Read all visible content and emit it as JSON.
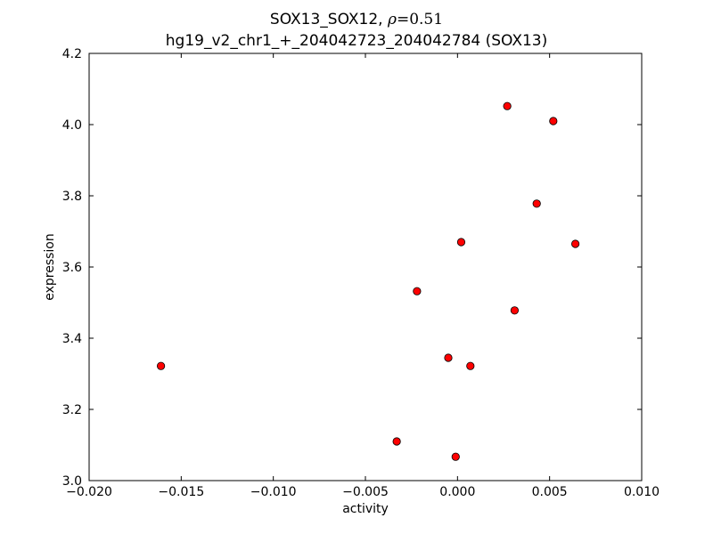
{
  "chart_data": {
    "type": "scatter",
    "title_line1_prefix": "SOX13_SOX12, ",
    "title_rho_symbol": "ρ",
    "title_rho_value": "=0.51",
    "title_line2": "hg19_v2_chr1_+_204042723_204042784 (SOX13)",
    "xlabel": "activity",
    "ylabel": "expression",
    "xlim": [
      -0.02,
      0.01
    ],
    "ylim": [
      3.0,
      4.2
    ],
    "xticks": [
      -0.02,
      -0.015,
      -0.01,
      -0.005,
      0.0,
      0.005,
      0.01
    ],
    "xtick_labels": [
      "−0.020",
      "−0.015",
      "−0.010",
      "−0.005",
      "0.000",
      "0.005",
      "0.010"
    ],
    "yticks": [
      3.0,
      3.2,
      3.4,
      3.6,
      3.8,
      4.0,
      4.2
    ],
    "ytick_labels": [
      "3.0",
      "3.2",
      "3.4",
      "3.6",
      "3.8",
      "4.0",
      "4.2"
    ],
    "grid": false,
    "marker_color": "#ff0000",
    "points": [
      {
        "x": -0.0161,
        "y": 3.322
      },
      {
        "x": -0.0033,
        "y": 3.11
      },
      {
        "x": -0.0022,
        "y": 3.532
      },
      {
        "x": -0.0005,
        "y": 3.345
      },
      {
        "x": -0.0001,
        "y": 3.067
      },
      {
        "x": 0.0002,
        "y": 3.67
      },
      {
        "x": 0.0007,
        "y": 3.322
      },
      {
        "x": 0.0027,
        "y": 4.052
      },
      {
        "x": 0.0031,
        "y": 3.478
      },
      {
        "x": 0.0043,
        "y": 3.778
      },
      {
        "x": 0.0052,
        "y": 4.01
      },
      {
        "x": 0.0064,
        "y": 3.665
      }
    ]
  }
}
